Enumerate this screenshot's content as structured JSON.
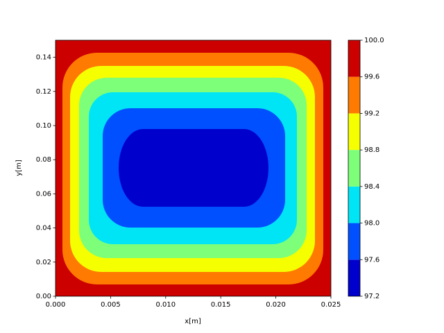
{
  "chart_data": {
    "type": "contourf",
    "xlabel": "x[m]",
    "ylabel": "y[m]",
    "xlim": [
      0,
      0.025
    ],
    "xticks": [
      {
        "value": 0,
        "label": "0.000"
      },
      {
        "value": 0.005,
        "label": "0.005"
      },
      {
        "value": 0.01,
        "label": "0.010"
      },
      {
        "value": 0.015,
        "label": "0.015"
      },
      {
        "value": 0.02,
        "label": "0.020"
      },
      {
        "value": 0.025,
        "label": "0.025"
      }
    ],
    "ylim": [
      0,
      0.15
    ],
    "yticks": [
      {
        "value": 0,
        "label": "0.00"
      },
      {
        "value": 0.02,
        "label": "0.02"
      },
      {
        "value": 0.04,
        "label": "0.04"
      },
      {
        "value": 0.06,
        "label": "0.06"
      },
      {
        "value": 0.08,
        "label": "0.08"
      },
      {
        "value": 0.1,
        "label": "0.10"
      },
      {
        "value": 0.12,
        "label": "0.12"
      },
      {
        "value": 0.14,
        "label": "0.14"
      }
    ],
    "levels": [
      97.2,
      97.6,
      {
        "value": 98,
        "label": "98.0"
      },
      98.4,
      98.8,
      99.2,
      99.6,
      {
        "value": 100,
        "label": "100.0"
      }
    ],
    "colors": [
      "#0000cd",
      "#0050ff",
      "#00e5f5",
      "#7dff7a",
      "#f5ff00",
      "#ff7a00",
      "#cd0000"
    ]
  }
}
